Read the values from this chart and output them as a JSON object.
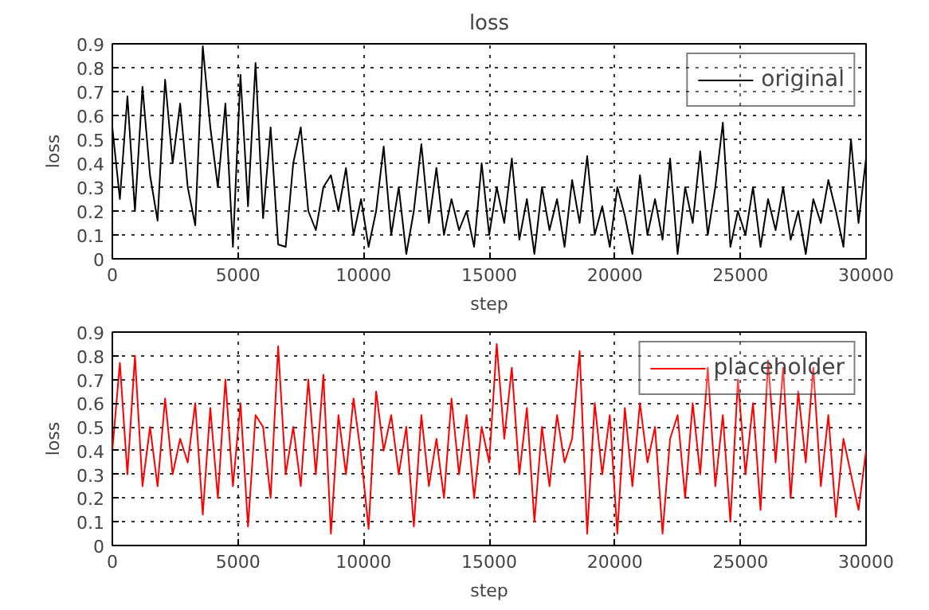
{
  "chart_data": [
    {
      "type": "line",
      "title": "loss",
      "xlabel": "step",
      "ylabel": "loss",
      "xlim": [
        0,
        30000
      ],
      "ylim": [
        0,
        0.9
      ],
      "xticks": [
        0,
        5000,
        10000,
        15000,
        20000,
        25000,
        30000
      ],
      "yticks": [
        0,
        0.1,
        0.2,
        0.3,
        0.4,
        0.5,
        0.6,
        0.7,
        0.8,
        0.9
      ],
      "grid": true,
      "legend": "top right",
      "line_style": "solid",
      "series": [
        {
          "name": "original",
          "color": "#000000",
          "x": [
            0,
            300,
            600,
            900,
            1200,
            1500,
            1800,
            2100,
            2400,
            2700,
            3000,
            3300,
            3600,
            3900,
            4200,
            4500,
            4800,
            5100,
            5400,
            5700,
            6000,
            6300,
            6600,
            6900,
            7200,
            7500,
            7800,
            8100,
            8400,
            8700,
            9000,
            9300,
            9600,
            9900,
            10200,
            10500,
            10800,
            11100,
            11400,
            11700,
            12000,
            12300,
            12600,
            12900,
            13200,
            13500,
            13800,
            14100,
            14400,
            14700,
            15000,
            15300,
            15600,
            15900,
            16200,
            16500,
            16800,
            17100,
            17400,
            17700,
            18000,
            18300,
            18600,
            18900,
            19200,
            19500,
            19800,
            20100,
            20400,
            20700,
            21000,
            21300,
            21600,
            21900,
            22200,
            22500,
            22800,
            23100,
            23400,
            23700,
            24000,
            24300,
            24600,
            24900,
            25200,
            25500,
            25800,
            26100,
            26400,
            26700,
            27000,
            27300,
            27600,
            27900,
            28200,
            28500,
            28800,
            29100,
            29400,
            29700,
            30000
          ],
          "values": [
            0.55,
            0.25,
            0.68,
            0.2,
            0.72,
            0.35,
            0.16,
            0.75,
            0.4,
            0.65,
            0.3,
            0.14,
            0.89,
            0.55,
            0.3,
            0.65,
            0.05,
            0.77,
            0.22,
            0.82,
            0.17,
            0.55,
            0.06,
            0.05,
            0.4,
            0.55,
            0.2,
            0.12,
            0.3,
            0.35,
            0.2,
            0.38,
            0.1,
            0.25,
            0.05,
            0.2,
            0.47,
            0.1,
            0.3,
            0.02,
            0.2,
            0.48,
            0.15,
            0.38,
            0.1,
            0.25,
            0.12,
            0.2,
            0.05,
            0.4,
            0.1,
            0.3,
            0.15,
            0.42,
            0.08,
            0.25,
            0.02,
            0.3,
            0.12,
            0.25,
            0.05,
            0.33,
            0.15,
            0.43,
            0.1,
            0.22,
            0.05,
            0.3,
            0.18,
            0.02,
            0.35,
            0.1,
            0.25,
            0.08,
            0.42,
            0.02,
            0.3,
            0.15,
            0.45,
            0.1,
            0.3,
            0.57,
            0.05,
            0.2,
            0.1,
            0.3,
            0.05,
            0.25,
            0.12,
            0.3,
            0.08,
            0.2,
            0.02,
            0.25,
            0.15,
            0.33,
            0.2,
            0.05,
            0.5,
            0.15,
            0.42
          ]
        }
      ]
    },
    {
      "type": "line",
      "xlabel": "step",
      "ylabel": "loss",
      "xlim": [
        0,
        30000
      ],
      "ylim": [
        0,
        0.9
      ],
      "xticks": [
        0,
        5000,
        10000,
        15000,
        20000,
        25000,
        30000
      ],
      "yticks": [
        0,
        0.1,
        0.2,
        0.3,
        0.4,
        0.5,
        0.6,
        0.7,
        0.8,
        0.9
      ],
      "grid": true,
      "legend": "top right",
      "line_style": "solid",
      "series": [
        {
          "name": "placeholder",
          "color": "#ff0000",
          "x": [
            0,
            300,
            600,
            900,
            1200,
            1500,
            1800,
            2100,
            2400,
            2700,
            3000,
            3300,
            3600,
            3900,
            4200,
            4500,
            4800,
            5100,
            5400,
            5700,
            6000,
            6300,
            6600,
            6900,
            7200,
            7500,
            7800,
            8100,
            8400,
            8700,
            9000,
            9300,
            9600,
            9900,
            10200,
            10500,
            10800,
            11100,
            11400,
            11700,
            12000,
            12300,
            12600,
            12900,
            13200,
            13500,
            13800,
            14100,
            14400,
            14700,
            15000,
            15300,
            15600,
            15900,
            16200,
            16500,
            16800,
            17100,
            17400,
            17700,
            18000,
            18300,
            18600,
            18900,
            19200,
            19500,
            19800,
            20100,
            20400,
            20700,
            21000,
            21300,
            21600,
            21900,
            22200,
            22500,
            22800,
            23100,
            23400,
            23700,
            24000,
            24300,
            24600,
            24900,
            25200,
            25500,
            25800,
            26100,
            26400,
            26700,
            27000,
            27300,
            27600,
            27900,
            28200,
            28500,
            28800,
            29100,
            29400,
            29700,
            30000
          ],
          "values": [
            0.4,
            0.77,
            0.3,
            0.8,
            0.25,
            0.5,
            0.25,
            0.62,
            0.3,
            0.45,
            0.35,
            0.6,
            0.13,
            0.58,
            0.2,
            0.7,
            0.25,
            0.6,
            0.08,
            0.55,
            0.5,
            0.2,
            0.84,
            0.3,
            0.5,
            0.25,
            0.7,
            0.3,
            0.72,
            0.05,
            0.55,
            0.3,
            0.62,
            0.38,
            0.07,
            0.65,
            0.4,
            0.55,
            0.3,
            0.5,
            0.08,
            0.55,
            0.25,
            0.45,
            0.2,
            0.62,
            0.3,
            0.55,
            0.2,
            0.5,
            0.35,
            0.85,
            0.45,
            0.75,
            0.3,
            0.58,
            0.1,
            0.5,
            0.25,
            0.55,
            0.35,
            0.45,
            0.82,
            0.05,
            0.6,
            0.3,
            0.55,
            0.05,
            0.58,
            0.25,
            0.6,
            0.35,
            0.5,
            0.05,
            0.45,
            0.55,
            0.2,
            0.6,
            0.3,
            0.75,
            0.25,
            0.55,
            0.1,
            0.7,
            0.3,
            0.6,
            0.15,
            0.78,
            0.35,
            0.75,
            0.2,
            0.65,
            0.35,
            0.75,
            0.25,
            0.55,
            0.12,
            0.45,
            0.3,
            0.15,
            0.4
          ]
        }
      ]
    }
  ]
}
